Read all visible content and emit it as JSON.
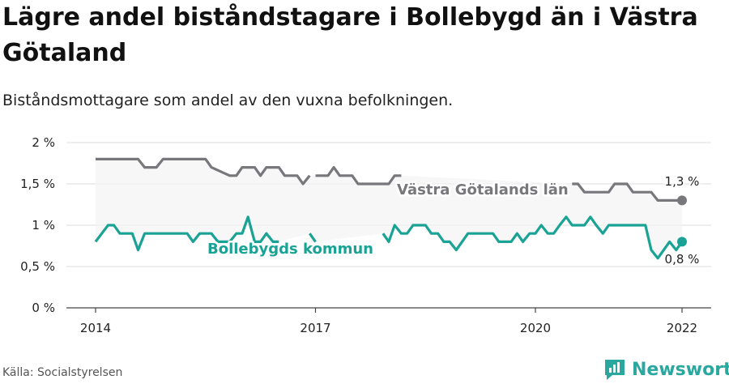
{
  "title": "Lägre andel biståndstagare i Bollebygd än i Västra Götaland",
  "subtitle": "Biståndsmottagare som andel av den vuxna befolkningen.",
  "source": "Källa: Socialstyrelsen",
  "brand": {
    "name": "Newsworthy",
    "icon": "newsworthy-logo-icon",
    "color": "#2aa8a0"
  },
  "chart_data": {
    "type": "line",
    "y_ticks": [
      "0 %",
      "0,5 %",
      "1 %",
      "1,5 %",
      "2 %"
    ],
    "x_ticks": [
      "2014",
      "2017",
      "2020",
      "2022"
    ],
    "ylim": [
      0,
      2
    ],
    "grid": true,
    "series": [
      {
        "name": "Västra Götalands län",
        "color": "#77777c",
        "end_label": "1,3 %",
        "points": [
          [
            2014.0,
            1.8
          ],
          [
            2014.58,
            1.8
          ],
          [
            2014.67,
            1.7
          ],
          [
            2014.83,
            1.7
          ],
          [
            2014.92,
            1.8
          ],
          [
            2015.5,
            1.8
          ],
          [
            2015.58,
            1.7
          ],
          [
            2015.83,
            1.6
          ],
          [
            2015.92,
            1.6
          ],
          [
            2016.0,
            1.7
          ],
          [
            2016.17,
            1.7
          ],
          [
            2016.25,
            1.6
          ],
          [
            2016.33,
            1.7
          ],
          [
            2016.5,
            1.7
          ],
          [
            2016.58,
            1.6
          ],
          [
            2016.75,
            1.6
          ],
          [
            2016.83,
            1.5
          ],
          [
            2016.92,
            1.6
          ],
          null,
          [
            2017.0,
            1.6
          ],
          [
            2017.17,
            1.6
          ],
          [
            2017.25,
            1.7
          ],
          [
            2017.33,
            1.6
          ],
          [
            2017.5,
            1.6
          ],
          [
            2017.58,
            1.5
          ],
          [
            2017.92,
            1.5
          ],
          [
            2018.0,
            1.5
          ],
          [
            2018.08,
            1.6
          ],
          [
            2018.17,
            1.6
          ],
          null,
          [
            2020.5,
            1.5
          ],
          [
            2020.58,
            1.5
          ],
          [
            2020.67,
            1.4
          ],
          [
            2021.0,
            1.4
          ],
          [
            2021.08,
            1.5
          ],
          [
            2021.25,
            1.5
          ],
          [
            2021.33,
            1.4
          ],
          [
            2021.58,
            1.4
          ],
          [
            2021.67,
            1.3
          ],
          [
            2022.0,
            1.3
          ]
        ]
      },
      {
        "name": "Bollebygds kommun",
        "color": "#1aa395",
        "end_label": "0,8 %",
        "points": [
          [
            2014.0,
            0.8
          ],
          [
            2014.17,
            1.0
          ],
          [
            2014.25,
            1.0
          ],
          [
            2014.33,
            0.9
          ],
          [
            2014.5,
            0.9
          ],
          [
            2014.58,
            0.7
          ],
          [
            2014.67,
            0.9
          ],
          [
            2015.25,
            0.9
          ],
          [
            2015.33,
            0.8
          ],
          [
            2015.42,
            0.9
          ],
          [
            2015.58,
            0.9
          ],
          [
            2015.67,
            0.8
          ],
          [
            2015.83,
            0.8
          ],
          [
            2015.92,
            0.9
          ],
          [
            2016.0,
            0.9
          ],
          [
            2016.08,
            1.1
          ],
          [
            2016.17,
            0.8
          ],
          [
            2016.25,
            0.8
          ],
          [
            2016.33,
            0.9
          ],
          [
            2016.42,
            0.8
          ],
          [
            2016.5,
            0.8
          ],
          null,
          [
            2016.92,
            0.9
          ],
          [
            2017.0,
            0.8
          ],
          null,
          [
            2017.92,
            0.9
          ],
          [
            2018.0,
            0.8
          ],
          [
            2018.08,
            1.0
          ],
          [
            2018.17,
            0.9
          ],
          [
            2018.25,
            0.9
          ],
          [
            2018.33,
            1.0
          ],
          [
            2018.5,
            1.0
          ],
          [
            2018.58,
            0.9
          ],
          [
            2018.67,
            0.9
          ],
          [
            2018.75,
            0.8
          ],
          [
            2018.83,
            0.8
          ],
          [
            2018.92,
            0.7
          ],
          [
            2019.0,
            0.8
          ],
          [
            2019.08,
            0.9
          ],
          [
            2019.42,
            0.9
          ],
          [
            2019.5,
            0.8
          ],
          [
            2019.67,
            0.8
          ],
          [
            2019.75,
            0.9
          ],
          [
            2019.83,
            0.8
          ],
          [
            2019.92,
            0.9
          ],
          [
            2020.0,
            0.9
          ],
          [
            2020.08,
            1.0
          ],
          [
            2020.17,
            0.9
          ],
          [
            2020.25,
            0.9
          ],
          [
            2020.33,
            1.0
          ],
          [
            2020.42,
            1.1
          ],
          [
            2020.5,
            1.0
          ],
          [
            2020.67,
            1.0
          ],
          [
            2020.75,
            1.1
          ],
          [
            2020.83,
            1.0
          ],
          [
            2020.92,
            0.9
          ],
          [
            2021.0,
            1.0
          ],
          [
            2021.5,
            1.0
          ],
          [
            2021.58,
            0.7
          ],
          [
            2021.67,
            0.6
          ],
          [
            2021.83,
            0.8
          ],
          [
            2021.92,
            0.7
          ],
          [
            2022.0,
            0.8
          ]
        ]
      }
    ]
  }
}
